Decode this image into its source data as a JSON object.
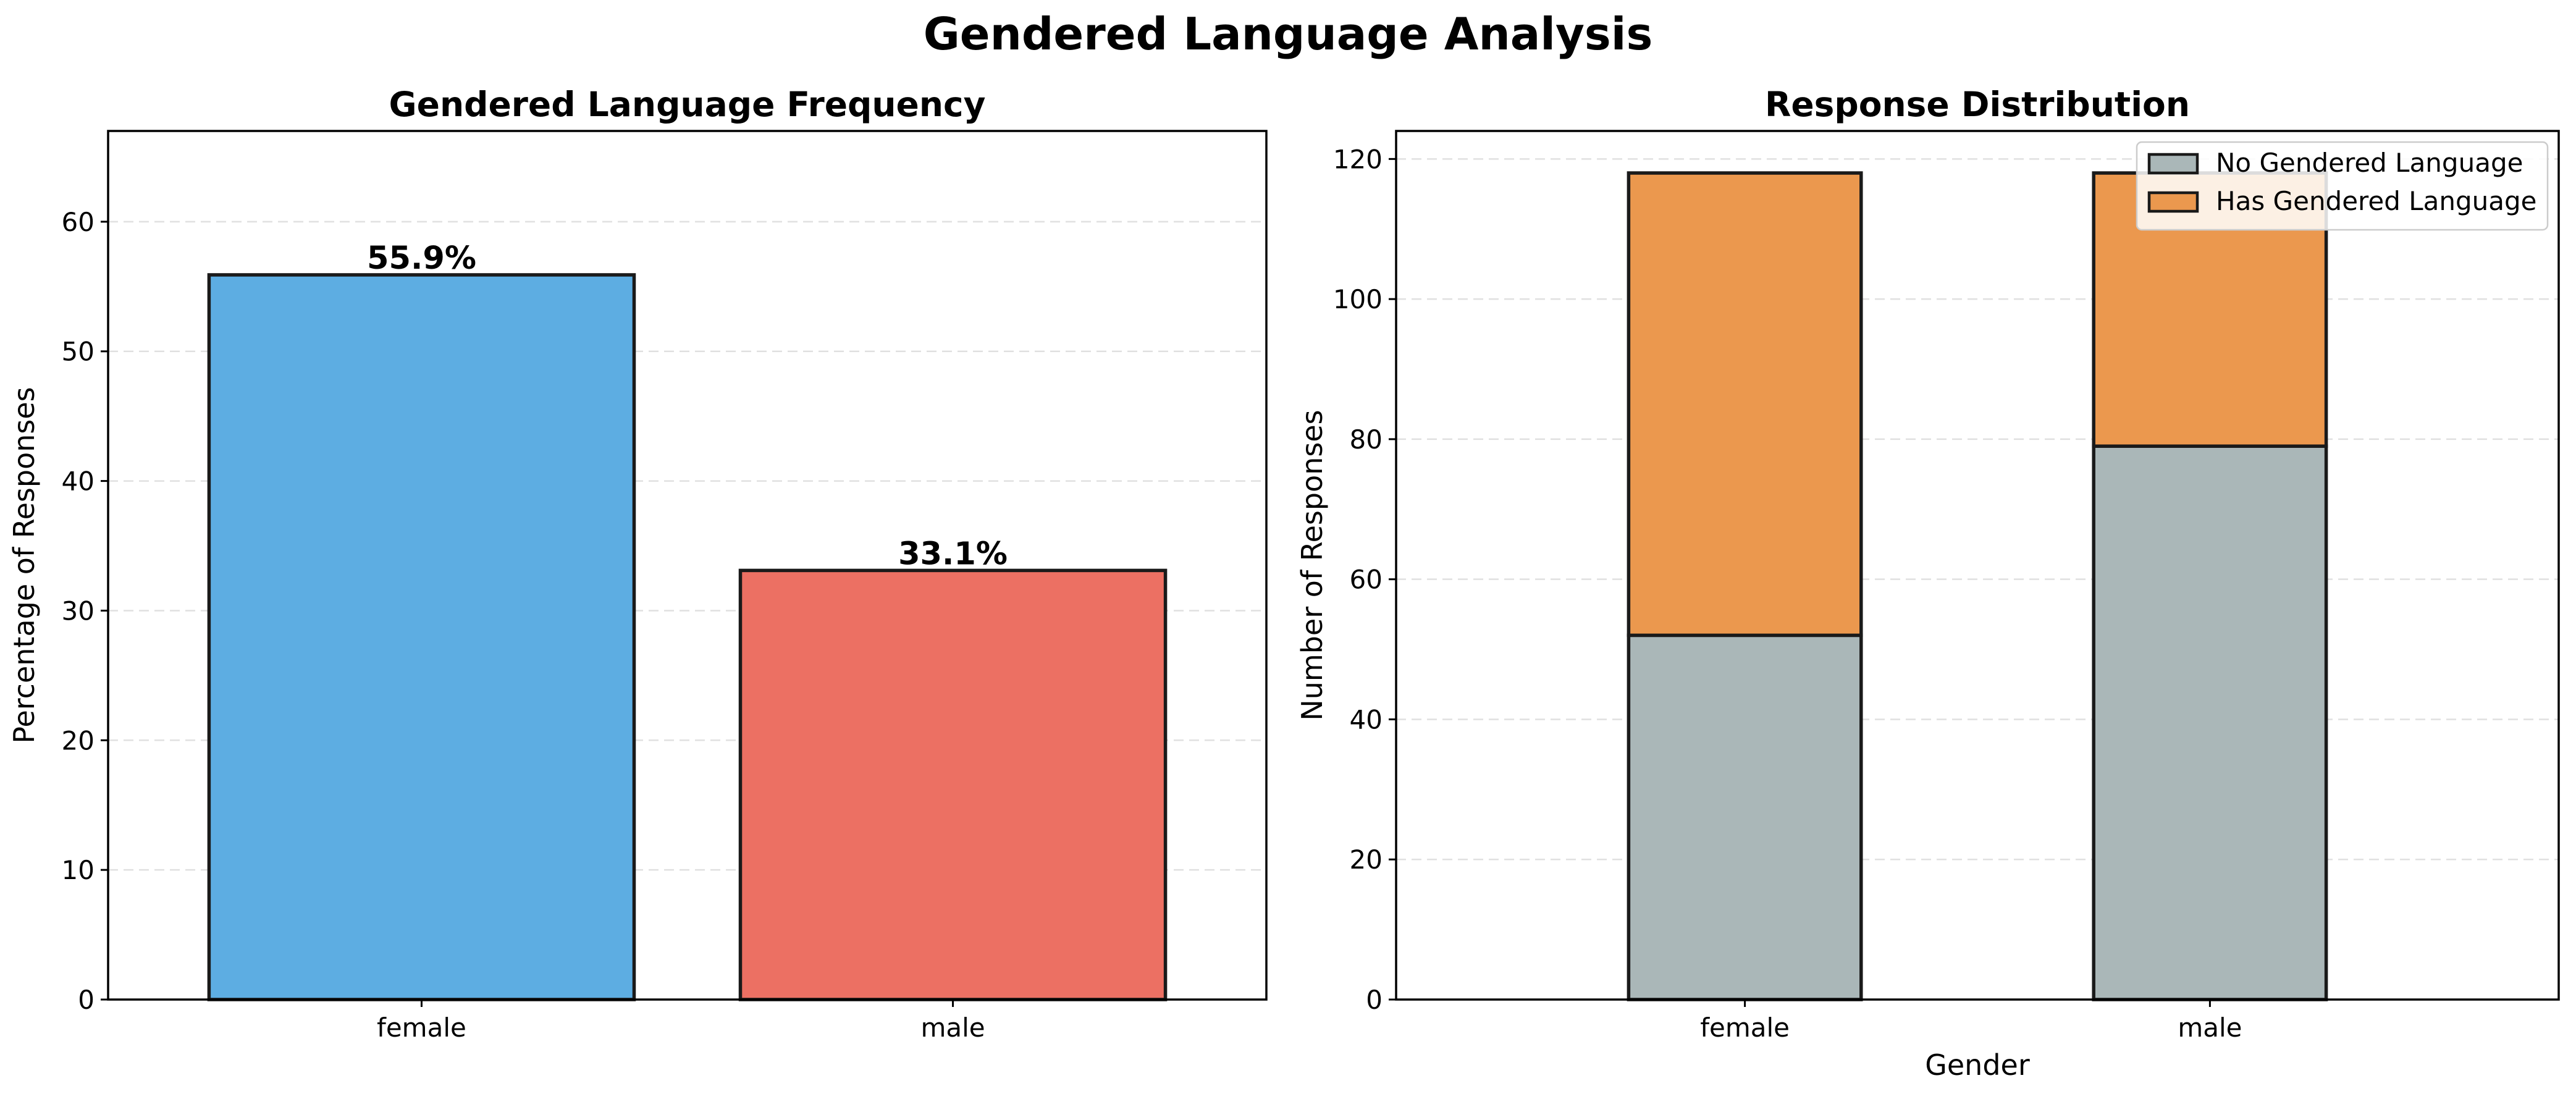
{
  "figure": {
    "title": "Gendered Language Analysis"
  },
  "chart_data": [
    {
      "type": "bar",
      "title": "Gendered Language Frequency",
      "xlabel": "",
      "ylabel": "Percentage of Responses",
      "categories": [
        "female",
        "male"
      ],
      "values": [
        55.9,
        33.1
      ],
      "data_labels": [
        "55.9%",
        "33.1%"
      ],
      "colors": [
        "#5DADE2",
        "#EC7063"
      ],
      "ylim": [
        0,
        67
      ],
      "yticks": [
        0,
        10,
        20,
        30,
        40,
        50,
        60
      ],
      "grid": "y-dashed"
    },
    {
      "type": "bar",
      "stacked": true,
      "title": "Response Distribution",
      "xlabel": "Gender",
      "ylabel": "Number of Responses",
      "categories": [
        "female",
        "male"
      ],
      "series": [
        {
          "name": "No Gendered Language",
          "values": [
            52,
            79
          ],
          "color": "#AAB7B8"
        },
        {
          "name": "Has Gendered Language",
          "values": [
            66,
            39
          ],
          "color": "#EB984E"
        }
      ],
      "ylim": [
        0,
        124
      ],
      "yticks": [
        0,
        20,
        40,
        60,
        80,
        100,
        120
      ],
      "legend": "top-right",
      "grid": "y-dashed"
    }
  ]
}
